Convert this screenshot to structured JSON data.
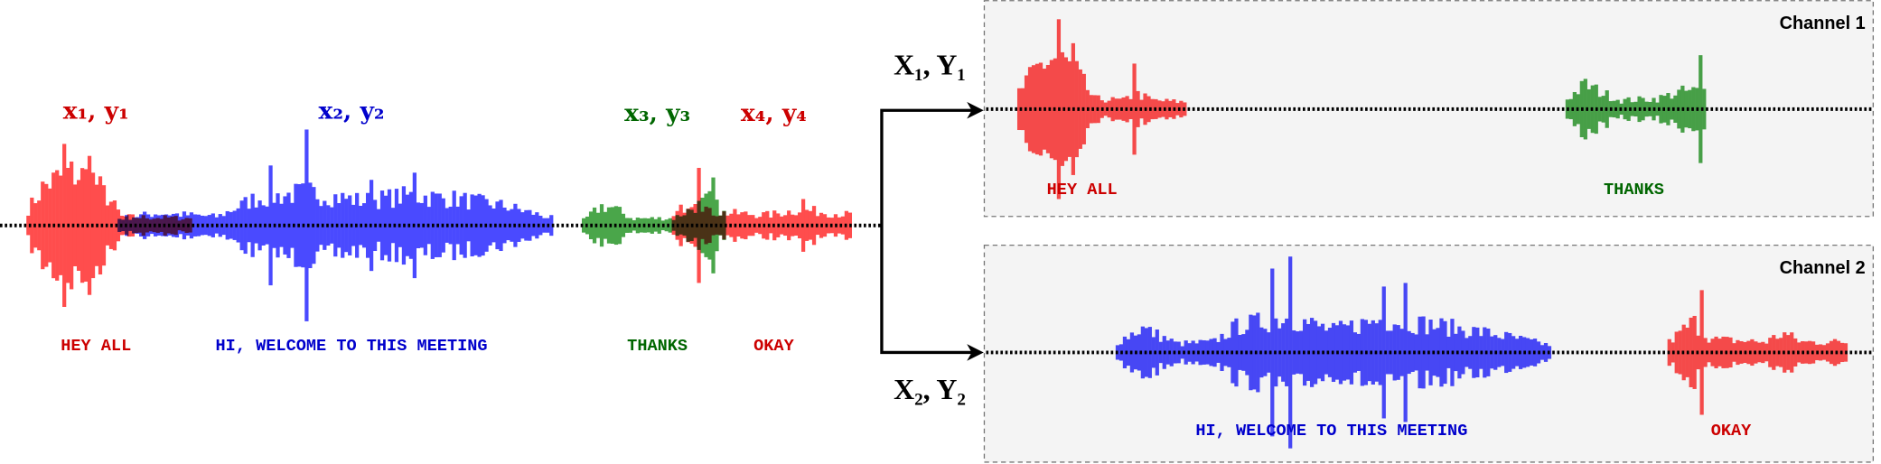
{
  "colors": {
    "red_wave": "#ff4d4d",
    "blue_wave": "#4a4aff",
    "green_wave": "#4aa64a",
    "red_text": "#cc0000",
    "blue_text": "#0000cc",
    "green_text": "#006600",
    "channel_bg": "#f4f4f4",
    "channel_border": "#777777"
  },
  "mixed": {
    "segments": [
      {
        "label": "x₁, y₁",
        "transcript": "HEY ALL",
        "color": "red"
      },
      {
        "label": "x₂, y₂",
        "transcript": "HI, WELCOME TO THIS MEETING",
        "color": "blue"
      },
      {
        "label": "x₃, y₃",
        "transcript": "THANKS",
        "color": "green"
      },
      {
        "label": "x₄, y₄",
        "transcript": "OKAY",
        "color": "red"
      }
    ]
  },
  "split": {
    "channel1_input": "X₁, Y₁",
    "channel2_input": "X₂, Y₂"
  },
  "channels": [
    {
      "title": "Channel 1",
      "transcripts": [
        "HEY ALL",
        "THANKS"
      ]
    },
    {
      "title": "Channel 2",
      "transcripts": [
        "HI, WELCOME TO THIS MEETING",
        "OKAY"
      ]
    }
  ]
}
